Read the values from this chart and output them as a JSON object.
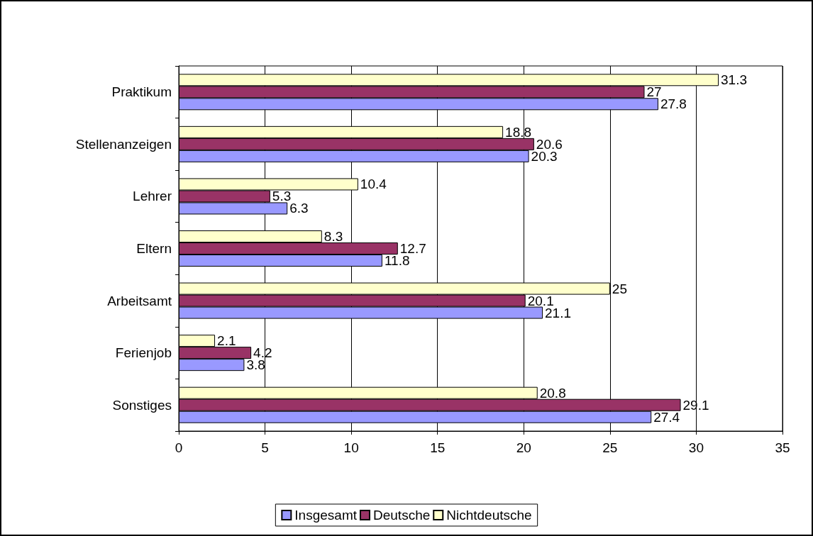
{
  "chart_data": {
    "type": "bar",
    "orientation": "horizontal",
    "categories": [
      "Praktikum",
      "Stellenanzeigen",
      "Lehrer",
      "Eltern",
      "Arbeitsamt",
      "Ferienjob",
      "Sonstiges"
    ],
    "series": [
      {
        "name": "Insgesamt",
        "color": "#9999ff",
        "values": [
          27.8,
          20.3,
          6.3,
          11.8,
          21.1,
          3.8,
          27.4
        ]
      },
      {
        "name": "Deutsche",
        "color": "#993366",
        "values": [
          27,
          20.6,
          5.3,
          12.7,
          20.1,
          4.2,
          29.1
        ]
      },
      {
        "name": "Nichtdeutsche",
        "color": "#ffffcc",
        "values": [
          31.3,
          18.8,
          10.4,
          8.3,
          25,
          2.1,
          20.8
        ]
      }
    ],
    "xlim": [
      0,
      35
    ],
    "xticks": [
      0,
      5,
      10,
      15,
      20,
      25,
      30,
      35
    ],
    "grid": "x",
    "legend": "bottom",
    "data_labels": true
  }
}
